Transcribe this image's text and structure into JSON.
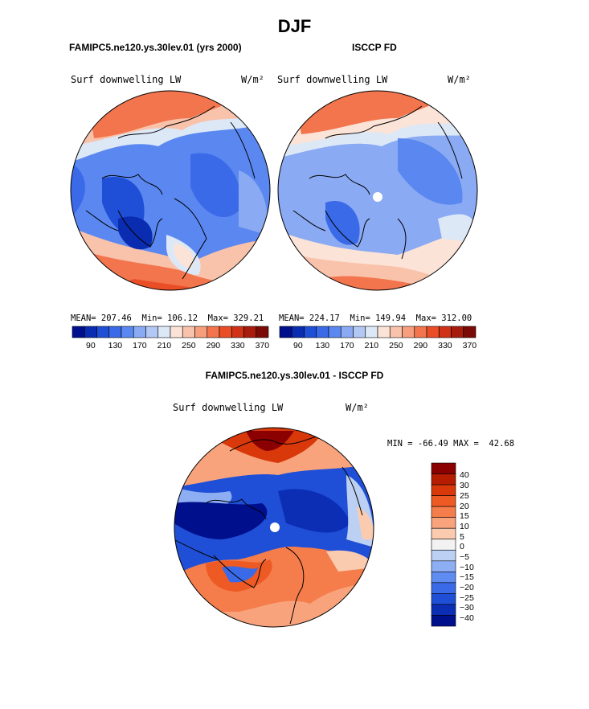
{
  "season": "DJF",
  "units": "W/m²",
  "panels": [
    {
      "id": "model",
      "title": "FAMIPC5.ne120.ys.30lev.01 (yrs 2000)",
      "left_label": "Surf downwelling LW",
      "right_label": "W/m²",
      "stats": "MEAN= 207.46  Min= 106.12  Max= 329.21",
      "colorbar_ticks": [
        "90",
        "130",
        "170",
        "210",
        "250",
        "290",
        "330",
        "370"
      ]
    },
    {
      "id": "obs",
      "title": "ISCCP FD",
      "left_label": "Surf downwelling LW",
      "right_label": "W/m²",
      "stats": "MEAN= 224.17  Min= 149.94  Max= 312.00",
      "colorbar_ticks": [
        "90",
        "130",
        "170",
        "210",
        "250",
        "290",
        "330",
        "370"
      ]
    }
  ],
  "diff": {
    "title": "FAMIPC5.ne120.ys.30lev.01 - ISCCP FD",
    "left_label": "Surf downwelling LW",
    "right_label": "W/m²",
    "minmax": "MIN = -66.49 MAX =  42.68",
    "colorbar_labels": [
      "40",
      "30",
      "25",
      "20",
      "15",
      "10",
      "5",
      "0",
      "−5",
      "−10",
      "−15",
      "−20",
      "−25",
      "−30",
      "−40"
    ]
  },
  "colors": {
    "abs_scale": [
      "#000f8c",
      "#0a2cb0",
      "#1f4fd6",
      "#3a6ae8",
      "#5a87f0",
      "#8aaaf3",
      "#b4c8f5",
      "#dde8f7",
      "#fbe3d7",
      "#f9c3ab",
      "#f79e7d",
      "#f2754d",
      "#e94e26",
      "#cf3217",
      "#a81c0e",
      "#7a0a05"
    ],
    "diff_scale": [
      "#8b0000",
      "#b51c00",
      "#d8380a",
      "#ee5a23",
      "#f57d4b",
      "#f8a37c",
      "#fbcbb0",
      "#f2f2f2",
      "#bcd0f4",
      "#8daef2",
      "#5e8cf0",
      "#3a6ae8",
      "#1f4fd6",
      "#0c2eb5",
      "#000f8c"
    ]
  }
}
